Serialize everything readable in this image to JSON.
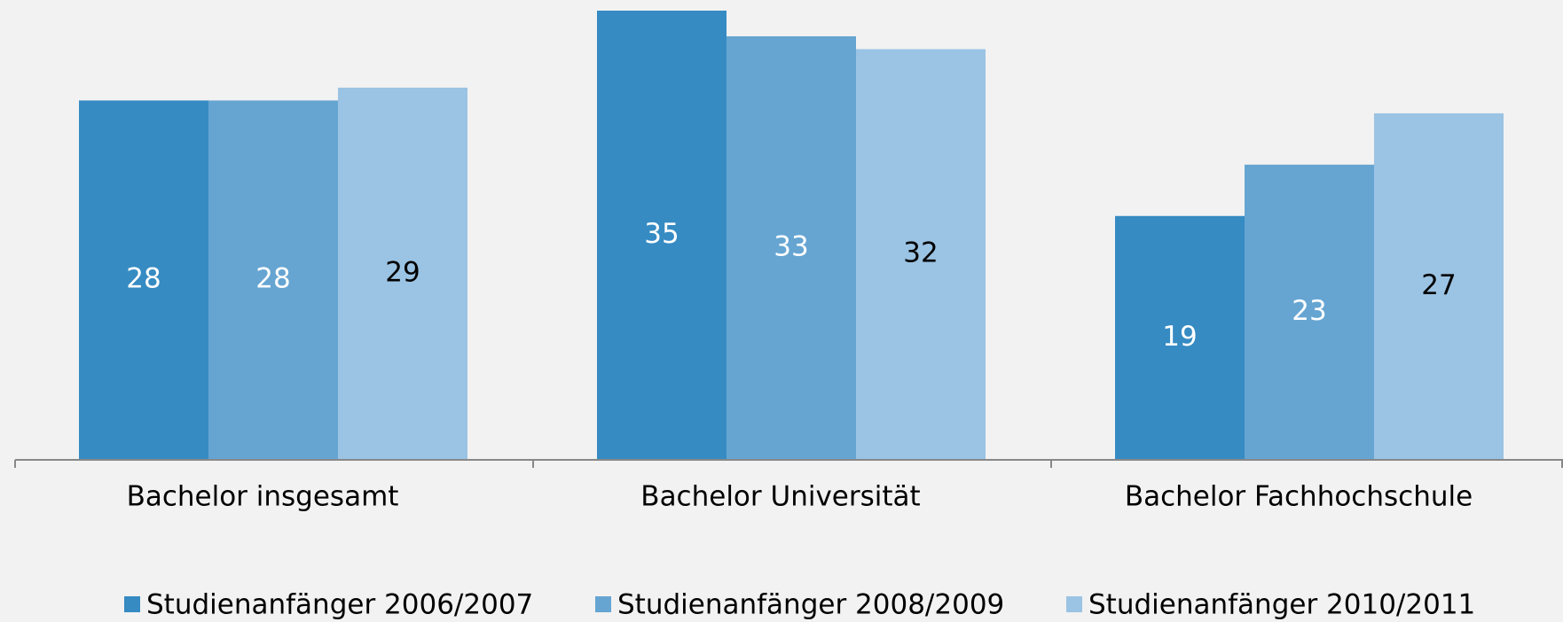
{
  "chart_data": {
    "type": "bar",
    "categories": [
      "Bachelor insgesamt",
      "Bachelor Universität",
      "Bachelor Fachhochschule"
    ],
    "series": [
      {
        "name": "Studienanfänger 2006/2007",
        "color": "#368bc3",
        "values": [
          28,
          35,
          19
        ]
      },
      {
        "name": "Studienanfänger 2008/2009",
        "color": "#66a5d2",
        "values": [
          28,
          33,
          23
        ]
      },
      {
        "name": "Studienanfänger 2010/2011",
        "color": "#9bc3e3",
        "values": [
          29,
          32,
          27
        ]
      }
    ],
    "legend": "bottom"
  }
}
